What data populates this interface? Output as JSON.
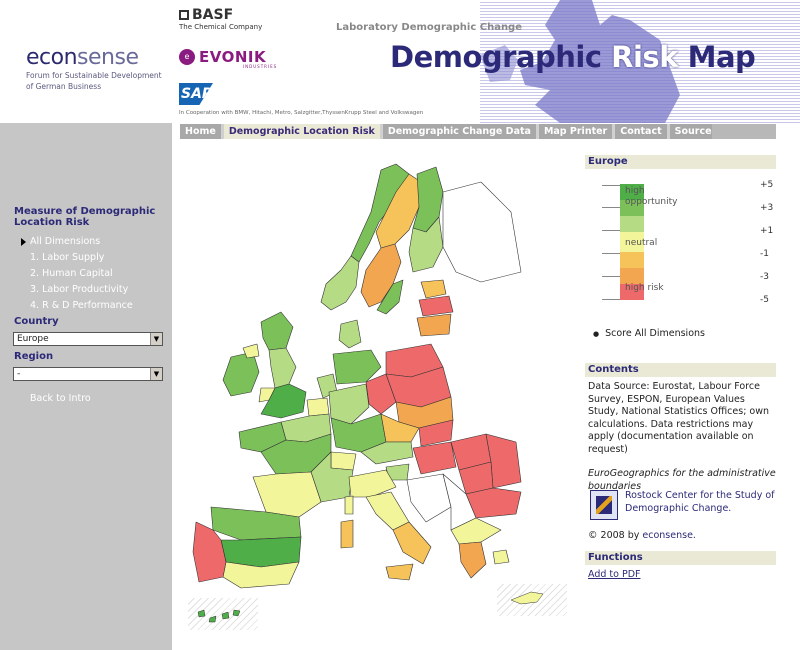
{
  "header": {
    "econsense": {
      "word_dark": "econ",
      "word_light": "sense",
      "line1": "Forum for Sustainable Development",
      "line2": "of German Business"
    },
    "basf": {
      "name": "BASF",
      "tagline": "The Chemical Company"
    },
    "evonik": {
      "name": "EVONIK",
      "tagline": "INDUSTRIES"
    },
    "sap": {
      "name": "SAP"
    },
    "cooperation": "In Cooperation with BMW, Hitachi, Metro, Salzgitter,ThyssenKrupp Steel and Volkswagen",
    "lab_title": "Laboratory Demographic Change",
    "title_part1": "Demographic",
    "title_part2": "Risk",
    "title_part3": "Map"
  },
  "nav": {
    "tabs": [
      "Home",
      "Demographic Location Risk",
      "Demographic Change Data",
      "Map Printer",
      "Contact",
      "Sources"
    ],
    "active": "Demographic Location Risk"
  },
  "sidebar": {
    "title": "Measure of Demographic Location Risk",
    "dimensions": [
      "All Dimensions",
      "1. Labor Supply",
      "2. Human Capital",
      "3. Labor Productivity",
      "4. R & D Performance"
    ],
    "country_label": "Country",
    "country_value": "Europe",
    "region_label": "Region",
    "region_value": "-",
    "back_link": "Back to Intro"
  },
  "legend": {
    "heading": "Europe",
    "label_high": "high opportunity",
    "label_neutral": "neutral",
    "label_risk": "high risk",
    "values": [
      "+5",
      "+3",
      "+1",
      "-1",
      "-3",
      "-5"
    ],
    "colors": [
      "#4fae48",
      "#7cc05a",
      "#b5dc85",
      "#f2f59a",
      "#f6c25a",
      "#f2a650",
      "#ee6a6a"
    ],
    "score_option": "Score All Dimensions"
  },
  "contents": {
    "heading": "Contents",
    "source": "Data Source: Eurostat, Labour Force Survey, ESPON, European Values Study, National Statistics Offices; own calculations. Data restrictions may apply (documentation available on request)",
    "eurogeo": "EuroGeographics for the administrative boundaries",
    "rostock": "Rostock Center for the Study of Demographic Change.",
    "copyright_prefix": "© 2008 by",
    "copyright_org": "econsense."
  },
  "functions": {
    "heading": "Functions",
    "add_pdf": "Add to PDF"
  }
}
